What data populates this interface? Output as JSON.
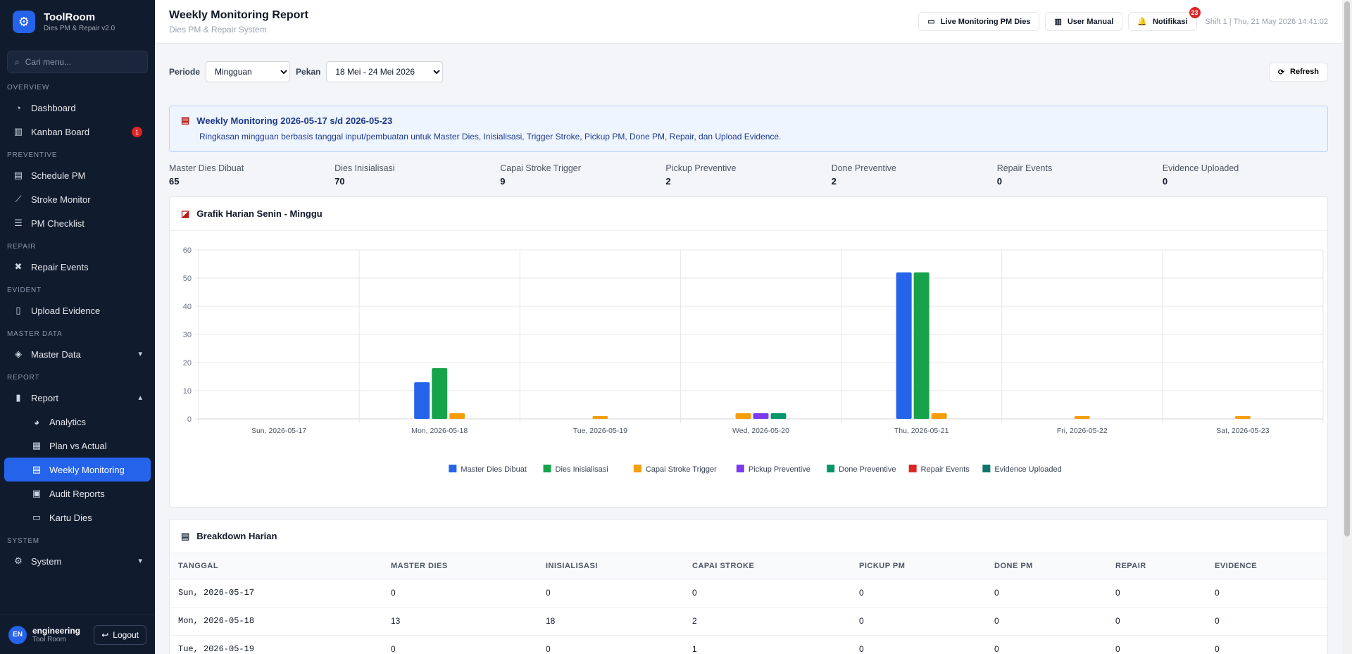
{
  "brand": {
    "name": "ToolRoom",
    "sub": "Dies PM & Repair v2.0"
  },
  "search": {
    "placeholder": "Cari menu..."
  },
  "sidebar": {
    "sections": {
      "overview": "OVERVIEW",
      "preventive": "PREVENTIVE",
      "repair": "REPAIR",
      "evident": "EVIDENT",
      "master": "MASTER DATA",
      "report": "REPORT",
      "system": "SYSTEM"
    },
    "items": {
      "dashboard": "Dashboard",
      "kanban": "Kanban Board",
      "kanban_badge": "1",
      "schedule": "Schedule PM",
      "stroke": "Stroke Monitor",
      "checklist": "PM Checklist",
      "repair": "Repair Events",
      "upload": "Upload Evidence",
      "master": "Master Data",
      "report": "Report",
      "analytics": "Analytics",
      "plan": "Plan vs Actual",
      "weekly": "Weekly Monitoring",
      "audit": "Audit Reports",
      "kartu": "Kartu Dies",
      "system": "System"
    }
  },
  "user": {
    "initials": "EN",
    "name": "engineering",
    "role": "Tool Room",
    "logout": "Logout"
  },
  "header": {
    "title": "Weekly Monitoring Report",
    "subtitle": "Dies PM & Repair System",
    "live_btn": "Live Monitoring PM Dies",
    "manual_btn": "User Manual",
    "notif_btn": "Notifikasi",
    "notif_count": "23",
    "shift": "Shift 1 | Thu, 21 May 2026 14:41:02"
  },
  "filters": {
    "periode_label": "Periode",
    "periode_value": "Mingguan",
    "pekan_label": "Pekan",
    "pekan_value": "18 Mei - 24 Mei 2026",
    "refresh": "Refresh"
  },
  "info": {
    "title": "Weekly Monitoring 2026-05-17 s/d 2026-05-23",
    "desc": "Ringkasan mingguan berbasis tanggal input/pembuatan untuk Master Dies, Inisialisasi, Trigger Stroke, Pickup PM, Done PM, Repair, dan Upload Evidence."
  },
  "stats": [
    {
      "label": "Master Dies Dibuat",
      "value": "65"
    },
    {
      "label": "Dies Inisialisasi",
      "value": "70"
    },
    {
      "label": "Capai Stroke Trigger",
      "value": "9"
    },
    {
      "label": "Pickup Preventive",
      "value": "2"
    },
    {
      "label": "Done Preventive",
      "value": "2"
    },
    {
      "label": "Repair Events",
      "value": "0"
    },
    {
      "label": "Evidence Uploaded",
      "value": "0"
    }
  ],
  "chart_title": "Grafik Harian Senin - Minggu",
  "chart_data": {
    "type": "bar",
    "categories": [
      "Sun, 2026-05-17",
      "Mon, 2026-05-18",
      "Tue, 2026-05-19",
      "Wed, 2026-05-20",
      "Thu, 2026-05-21",
      "Fri, 2026-05-22",
      "Sat, 2026-05-23"
    ],
    "ylim": [
      0,
      60
    ],
    "yticks": [
      0,
      10,
      20,
      30,
      40,
      50,
      60
    ],
    "grid": true,
    "legend": "bottom",
    "series": [
      {
        "name": "Master Dies Dibuat",
        "color": "#2563eb",
        "values": [
          0,
          13,
          0,
          0,
          52,
          0,
          0
        ]
      },
      {
        "name": "Dies Inisialisasi",
        "color": "#16a34a",
        "values": [
          0,
          18,
          0,
          0,
          52,
          0,
          0
        ]
      },
      {
        "name": "Capai Stroke Trigger",
        "color": "#f59e0b",
        "values": [
          0,
          2,
          1,
          2,
          2,
          1,
          1
        ]
      },
      {
        "name": "Pickup Preventive",
        "color": "#7c3aed",
        "values": [
          0,
          0,
          0,
          2,
          0,
          0,
          0
        ]
      },
      {
        "name": "Done Preventive",
        "color": "#059669",
        "values": [
          0,
          0,
          0,
          2,
          0,
          0,
          0
        ]
      },
      {
        "name": "Repair Events",
        "color": "#dc2626",
        "values": [
          0,
          0,
          0,
          0,
          0,
          0,
          0
        ]
      },
      {
        "name": "Evidence Uploaded",
        "color": "#0f766e",
        "values": [
          0,
          0,
          0,
          0,
          0,
          0,
          0
        ]
      }
    ]
  },
  "table": {
    "title": "Breakdown Harian",
    "headers": [
      "TANGGAL",
      "MASTER DIES",
      "INISIALISASI",
      "CAPAI STROKE",
      "PICKUP PM",
      "DONE PM",
      "REPAIR",
      "EVIDENCE"
    ],
    "rows": [
      [
        "Sun, 2026-05-17",
        "0",
        "0",
        "0",
        "0",
        "0",
        "0",
        "0"
      ],
      [
        "Mon, 2026-05-18",
        "13",
        "18",
        "2",
        "0",
        "0",
        "0",
        "0"
      ],
      [
        "Tue, 2026-05-19",
        "0",
        "0",
        "1",
        "0",
        "0",
        "0",
        "0"
      ]
    ]
  }
}
